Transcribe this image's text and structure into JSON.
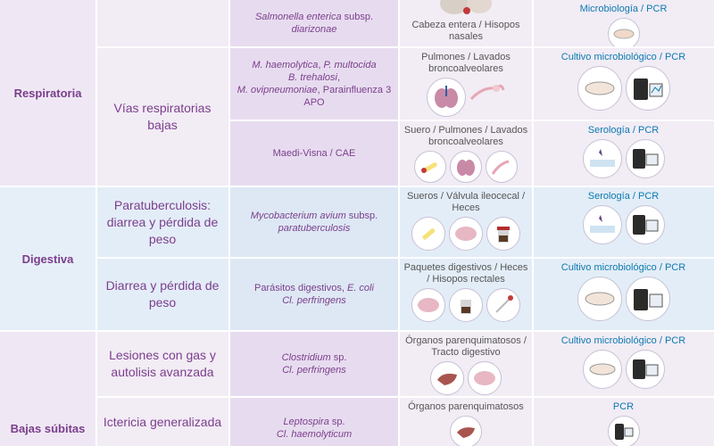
{
  "rows": [
    {
      "subsystem": "",
      "agent_html": "<i>Salmonella enterica</i> subsp. <i>diarizonae</i>",
      "sample": "Cabeza entera / Hisopos nasales",
      "technique": "Microbiología / PCR"
    },
    {
      "subsystem": "Vías respiratorias bajas",
      "agent_html": "<i>M. haemolytica</i>, <i>P. multocida</i><br><i>B. trehalosi</i>,<br><i>M. ovipneumoniae</i>, Parainfluenza 3<br>APO",
      "sample": "Pulmones / Lavados broncoalveolares",
      "technique": "Cultivo microbiológico / PCR"
    },
    {
      "subsystem": "",
      "agent_html": "Maedi-Visna / CAE",
      "sample": "Suero / Pulmones / Lavados broncoalveolares",
      "technique": "Serología / PCR"
    },
    {
      "subsystem": "Paratuberculosis: diarrea y pérdida de peso",
      "agent_html": "<i>Mycobacterium avium</i> subsp.<br><i>paratuberculosis</i>",
      "sample": "Sueros / Válvula ileocecal / Heces",
      "technique": "Serología / PCR"
    },
    {
      "subsystem": "Diarrea y pérdida de peso",
      "agent_html": "Parásitos digestivos, <i>E. coli</i><br><i>Cl. perfringens</i>",
      "sample": "Paquetes digestivos / Heces / Hisopos rectales",
      "technique": "Cultivo microbiológico / PCR"
    },
    {
      "subsystem": "Lesiones con gas y autolisis avanzada",
      "agent_html": "<i>Clostridium</i> sp.<br><i>Cl. perfringens</i>",
      "sample": "Órganos parenquimatosos / Tracto digestivo",
      "technique": "Cultivo microbiológico / PCR"
    },
    {
      "subsystem": "Ictericia generalizada",
      "agent_html": "<i>Leptospira</i> sp.<br><i>Cl. haemolyticum</i>",
      "sample": "Órganos parenquimatosos",
      "technique": "PCR"
    }
  ],
  "systems": {
    "respiratoria": "Respiratoria",
    "digestiva": "Digestiva",
    "bajas": "Bajas súbitas"
  },
  "colors": {
    "resp_sys": "#efe8f4",
    "resp_sub": "#f2ecf5",
    "resp_agent": "#e7dcef",
    "resp_text": "#7b3e8c",
    "dig_sys": "#e6eff8",
    "dig_sub": "#e3edf7",
    "dig_agent": "#dde8f4",
    "dig_text": "#7b3e8c",
    "tech_text": "#0c7ab0"
  }
}
